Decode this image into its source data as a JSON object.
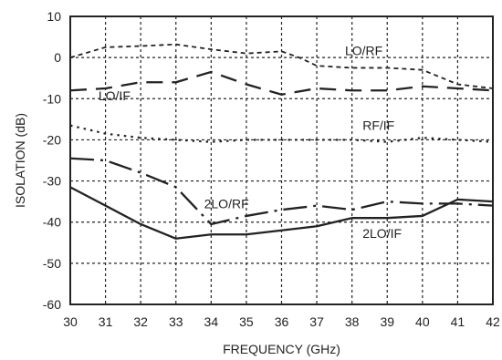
{
  "chart_data": {
    "type": "line",
    "xlabel": "FREQUENCY (GHz)",
    "ylabel": "ISOLATION (dB)",
    "xlim": [
      30,
      42
    ],
    "ylim": [
      -60,
      10
    ],
    "x_ticks": [
      30,
      31,
      32,
      33,
      34,
      35,
      36,
      37,
      38,
      39,
      40,
      41,
      42
    ],
    "y_ticks": [
      10,
      0,
      -10,
      -20,
      -30,
      -40,
      -50,
      -60
    ],
    "grid": true,
    "series": [
      {
        "name": "LO/RF",
        "style": "short-dash",
        "label_at": [
          37.8,
          0.6
        ],
        "x": [
          30,
          31,
          32,
          33,
          34,
          35,
          36,
          36.5,
          37,
          38,
          39,
          40,
          41,
          42
        ],
        "y": [
          0,
          2.5,
          2.8,
          3.2,
          2,
          1,
          1.5,
          0,
          -2,
          -2.5,
          -2.5,
          -3,
          -6.5,
          -7.5
        ]
      },
      {
        "name": "LO/IF",
        "style": "long-dash",
        "label_at": [
          30.8,
          -10.4
        ],
        "x": [
          30,
          31,
          32,
          33,
          34,
          35,
          36,
          37,
          38,
          39,
          40,
          41,
          42
        ],
        "y": [
          -8,
          -7.5,
          -6,
          -6,
          -3.5,
          -6.5,
          -9,
          -7.5,
          -8,
          -8,
          -7,
          -7.5,
          -8
        ]
      },
      {
        "name": "RF/IF",
        "style": "dotted",
        "label_at": [
          38.3,
          -17.6
        ],
        "x": [
          30,
          31,
          32,
          33,
          34,
          35,
          36,
          37,
          38,
          39,
          40,
          41,
          42
        ],
        "y": [
          -16.5,
          -18.5,
          -19.5,
          -20,
          -20.5,
          -20,
          -20,
          -20,
          -20,
          -20.5,
          -19.5,
          -20,
          -20.5
        ]
      },
      {
        "name": "2LO/RF",
        "style": "dash-dot",
        "label_at": [
          33.8,
          -36.6
        ],
        "x": [
          30,
          31,
          32,
          33,
          34,
          35,
          36,
          37,
          38,
          39,
          40,
          41,
          42
        ],
        "y": [
          -24.5,
          -25,
          -28,
          -31.5,
          -40.5,
          -38.5,
          -37,
          -36,
          -37,
          -35,
          -35.5,
          -35.5,
          -36
        ]
      },
      {
        "name": "2LO/IF",
        "style": "solid",
        "label_at": [
          38.3,
          -43.8
        ],
        "x": [
          30,
          31,
          32,
          33,
          34,
          35,
          36,
          37,
          38,
          39,
          40,
          41,
          42
        ],
        "y": [
          -31.5,
          -36,
          -40.5,
          -44,
          -43,
          -43,
          -42,
          -41,
          -39,
          -39,
          -38.5,
          -34.5,
          -35
        ]
      }
    ]
  }
}
